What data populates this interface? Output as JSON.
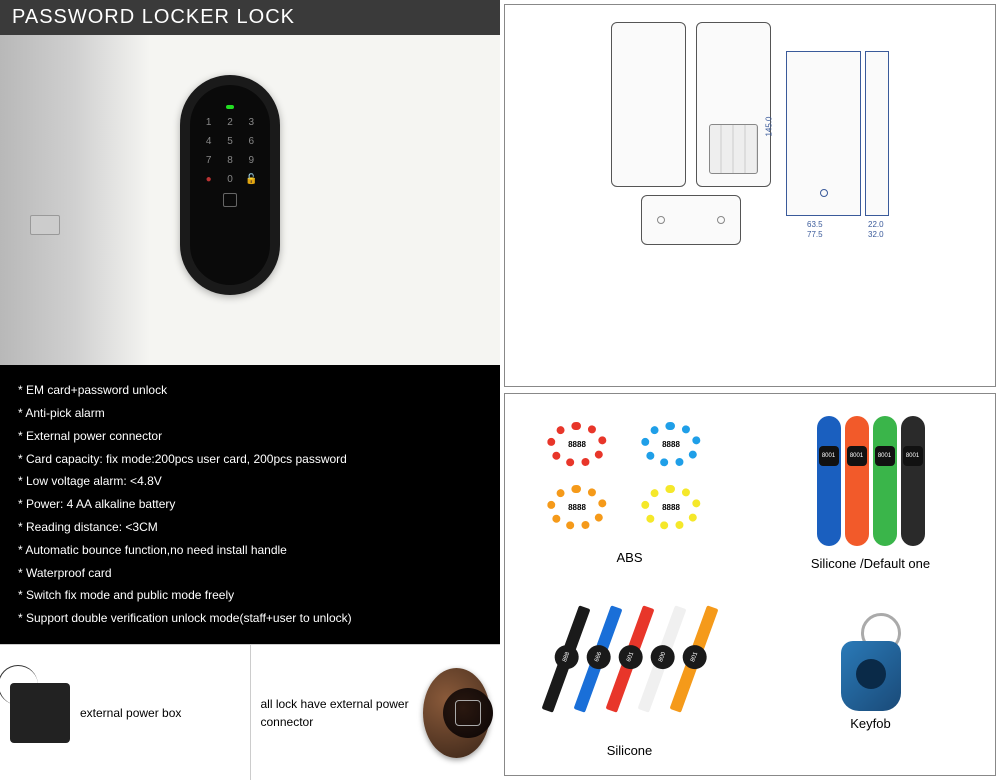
{
  "title": "PASSWORD LOCKER LOCK",
  "keypad": [
    "1",
    "2",
    "3",
    "4",
    "5",
    "6",
    "7",
    "8",
    "9",
    "",
    "0",
    ""
  ],
  "specs": [
    "* EM card+password unlock",
    "* Anti-pick alarm",
    "* External power connector",
    "* Card capacity: fix mode:200pcs user card, 200pcs password",
    "* Low voltage alarm: <4.8V",
    "* Power: 4 AA alkaline battery",
    "* Reading distance: <3CM",
    "* Automatic bounce function,no need install handle",
    "* Waterproof card",
    "* Switch fix mode and public mode freely",
    "* Support double verification unlock mode(staff+user to unlock)"
  ],
  "bottom": {
    "ext_label": "external power box",
    "knob_label": "all lock have external power connector"
  },
  "dimensions": {
    "h": "145.0",
    "w1": "63.5",
    "w2": "77.5",
    "d1": "22.0",
    "d2": "32.0"
  },
  "abs": {
    "label": "ABS",
    "items": [
      {
        "color": "#e8362a",
        "tag": "8888"
      },
      {
        "color": "#1f9fe8",
        "tag": "8888"
      },
      {
        "color": "#f59a1a",
        "tag": "8888"
      },
      {
        "color": "#f5e82a",
        "tag": "8888"
      }
    ]
  },
  "silicone_default": {
    "label": "Silicone /Default one",
    "items": [
      {
        "color": "#1a5fbf",
        "tag": "8001"
      },
      {
        "color": "#f25a2a",
        "tag": "8001"
      },
      {
        "color": "#3ab54a",
        "tag": "8001"
      },
      {
        "color": "#2a2a2a",
        "tag": "8001"
      }
    ]
  },
  "silicone_watch": {
    "label": "Silicone",
    "items": [
      {
        "color": "#1a1a1a",
        "tag": "888"
      },
      {
        "color": "#1a6fd8",
        "tag": "666"
      },
      {
        "color": "#e8362a",
        "tag": "601"
      },
      {
        "color": "#f0f0f0",
        "tag": "800"
      },
      {
        "color": "#f59a1a",
        "tag": "801"
      }
    ]
  },
  "keyfob": {
    "label": "Keyfob"
  },
  "colors": {
    "title_bg": "#3a3a3a",
    "spec_bg": "#000000",
    "border": "#888888",
    "blueprint": "#3a5a9a"
  }
}
